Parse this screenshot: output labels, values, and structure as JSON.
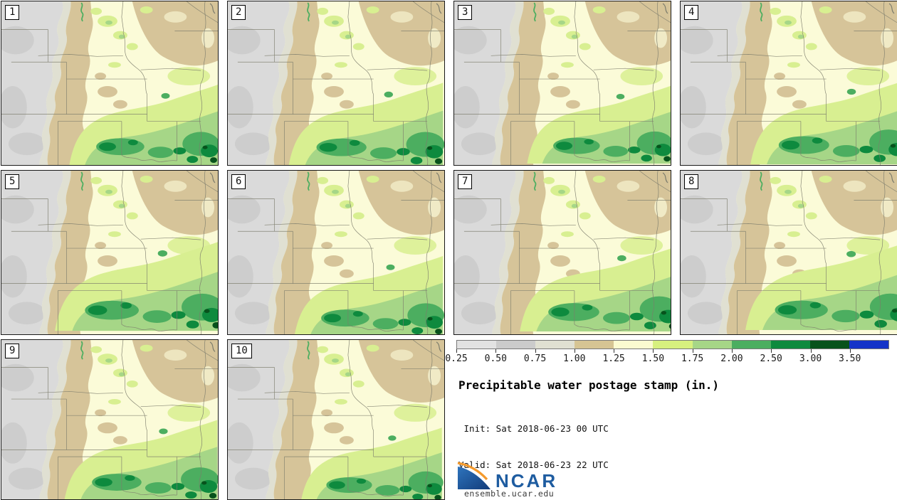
{
  "figure": {
    "panels": [
      {
        "label": "1"
      },
      {
        "label": "2"
      },
      {
        "label": "3"
      },
      {
        "label": "4"
      },
      {
        "label": "5"
      },
      {
        "label": "6"
      },
      {
        "label": "7"
      },
      {
        "label": "8"
      },
      {
        "label": "9"
      },
      {
        "label": "10"
      }
    ],
    "legend": {
      "ticks": [
        "0.25",
        "0.50",
        "0.75",
        "1.00",
        "1.25",
        "1.50",
        "1.75",
        "2.00",
        "2.50",
        "3.00",
        "3.50"
      ],
      "colors": [
        "#e2e2e2",
        "#cbcbcb",
        "#e0e0d2",
        "#d6c493",
        "#fbfbd0",
        "#d7f07e",
        "#a6d687",
        "#4cae60",
        "#0e8a3e",
        "#07521c",
        "#1433c8"
      ],
      "units": "in."
    },
    "title": "Precipitable water postage stamp (in.)",
    "init_line": " Init: Sat 2018-06-23 00 UTC",
    "valid_line": "Valid: Sat 2018-06-23 22 UTC",
    "branding": {
      "logo": "NCAR",
      "url": "ensemble.ucar.edu",
      "logo_blue": "#1e5ca0",
      "logo_blue_dark": "#123c7a",
      "logo_orange": "#f49a2d"
    },
    "map_colors": {
      "background_pale_yellow": "#fbfbd8",
      "gray": "#dadada",
      "gray_dark": "#cdcdcd",
      "olive_gray": "#e0e0d2",
      "tan": "#d6c499",
      "green_light": "#d8ef91",
      "green_mid": "#a6d687",
      "green_strong": "#4cae60",
      "green_dark": "#0e8a3e",
      "green_deep": "#07521c",
      "state_border": "#7c7c6c"
    }
  }
}
